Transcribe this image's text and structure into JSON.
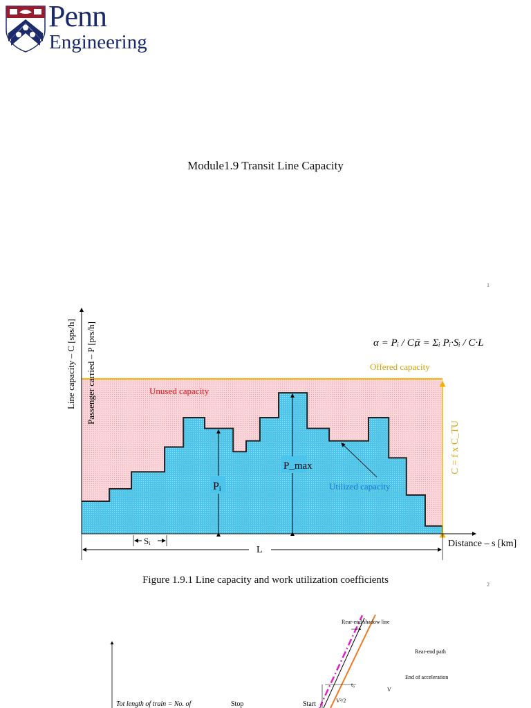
{
  "logo": {
    "line1": "Penn",
    "line2": "Engineering"
  },
  "slide1": {
    "title": "Module1.9 Transit Line Capacity",
    "page_number": "1"
  },
  "slide2": {
    "page_number": "2",
    "caption": "Figure 1.9.1 Line capacity and work utilization coefficients",
    "formula": {
      "alpha": "α = Pᵢ / C;",
      "alpha_bar": "ᾱ = Σᵢ Pᵢ·Sᵢ / C·L"
    },
    "colors": {
      "unused": "#f6c6cc",
      "utilized": "#3ec0ea",
      "offered": "#f2b200",
      "unused_label": "#e8141e",
      "utilized_label": "#1a78c8",
      "offered_label": "#d9a000"
    }
  },
  "chart_data": {
    "type": "area",
    "title": "",
    "ylabel_outer": "Line capacity – C [sps/h]",
    "ylabel_inner": "Passenger carried – P [prs/h]",
    "xlabel": "Distance – s [km]",
    "labels": {
      "unused": "Unused capacity",
      "utilized": "Utilized capacity",
      "offered": "Offered capacity",
      "capacity_formula": "C = f x C_TU",
      "p_i": "Pᵢ",
      "p_max": "P_max",
      "s_i": "Sᵢ",
      "length": "L"
    },
    "capacity": 1.0,
    "steps": [
      {
        "s_end": 0.077,
        "p": 0.21
      },
      {
        "s_end": 0.138,
        "p": 0.29
      },
      {
        "s_end": 0.23,
        "p": 0.4
      },
      {
        "s_end": 0.282,
        "p": 0.56
      },
      {
        "s_end": 0.341,
        "p": 0.75
      },
      {
        "s_end": 0.42,
        "p": 0.68
      },
      {
        "s_end": 0.456,
        "p": 0.53
      },
      {
        "s_end": 0.494,
        "p": 0.6
      },
      {
        "s_end": 0.546,
        "p": 0.75
      },
      {
        "s_end": 0.625,
        "p": 0.91
      },
      {
        "s_end": 0.686,
        "p": 0.68
      },
      {
        "s_end": 0.795,
        "p": 0.6
      },
      {
        "s_end": 0.851,
        "p": 0.75
      },
      {
        "s_end": 0.9,
        "p": 0.49
      },
      {
        "s_end": 0.952,
        "p": 0.25
      },
      {
        "s_end": 1.0,
        "p": 0.05
      }
    ]
  },
  "slide3": {
    "labels": {
      "shadow": "Rear-end shadow line",
      "path": "Rear-end path",
      "accel": "End of acceleration",
      "t0": "t₀",
      "v": "V",
      "v2": "V²/2",
      "start": "Start",
      "stop": "Stop",
      "train": "Tot length of train = No. of"
    }
  }
}
